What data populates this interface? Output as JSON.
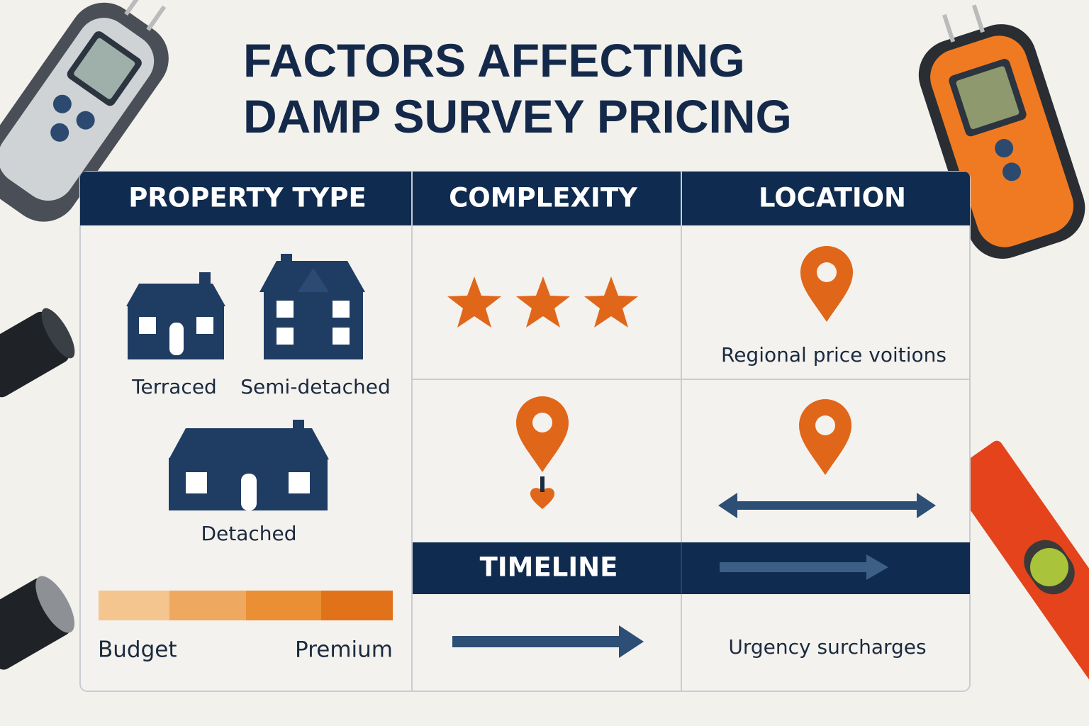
{
  "title": {
    "line1": "FACTORS AFFECTING",
    "line2": "DAMP SURVEY PRICING"
  },
  "columns": {
    "property_type": {
      "header": "PROPERTY TYPE",
      "items": [
        "Terraced",
        "Semi-detached",
        "Detached"
      ],
      "scale": {
        "low": "Budget",
        "high": "Premium"
      }
    },
    "complexity": {
      "header": "COMPLEXITY"
    },
    "location": {
      "header": "LOCATION",
      "note": "Regional price voitions"
    },
    "timeline": {
      "header": "TIMELINE",
      "note": "Urgency surcharges"
    }
  }
}
